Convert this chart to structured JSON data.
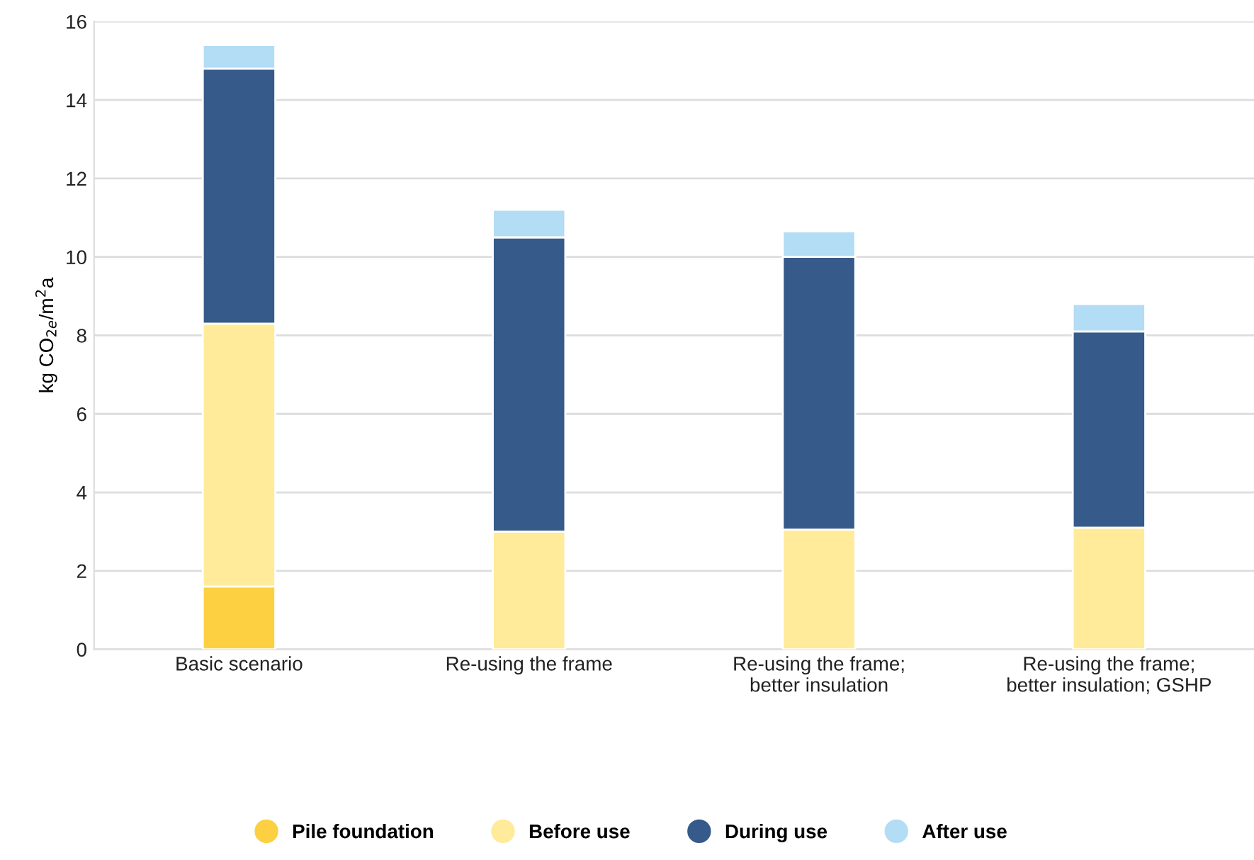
{
  "chart_data": {
    "type": "bar",
    "stacked": true,
    "ylabel": "kg CO$_{2e}$/m$^{2}$a",
    "categories": [
      "Basic scenario",
      "Re-using the frame",
      "Re-using the frame;\nbetter insulation",
      "Re-using the frame;\nbetter insulation; GSHP"
    ],
    "series": [
      {
        "name": "Pile foundation",
        "color": "#fcd040",
        "values": [
          1.6,
          0,
          0,
          0
        ]
      },
      {
        "name": "Before use",
        "color": "#ffeb99",
        "values": [
          6.7,
          3.0,
          3.05,
          3.1
        ]
      },
      {
        "name": "During use",
        "color": "#365a89",
        "values": [
          6.5,
          7.5,
          6.95,
          5.0
        ]
      },
      {
        "name": "After use",
        "color": "#b3dcf5",
        "values": [
          0.6,
          0.7,
          0.65,
          0.7
        ]
      }
    ],
    "ylim": [
      0,
      16
    ],
    "yticks": [
      0,
      2,
      4,
      6,
      8,
      10,
      12,
      14,
      16
    ],
    "grid": "y",
    "legend": "bottom"
  }
}
